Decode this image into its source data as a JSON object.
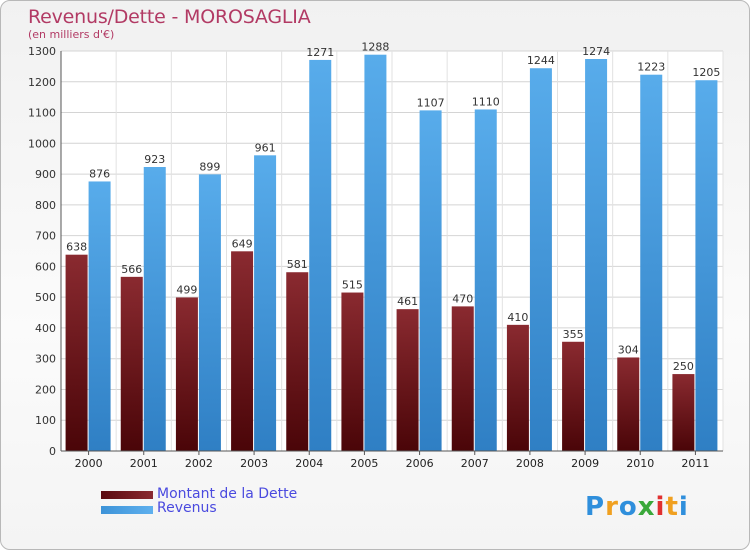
{
  "title": "Revenus/Dette - MOROSAGLIA",
  "subtitle": "(en milliers d'€)",
  "logo": {
    "text": "Proxiti",
    "letters": [
      {
        "ch": "P",
        "color": "#2f8fdc"
      },
      {
        "ch": "r",
        "color": "#f0a020"
      },
      {
        "ch": "o",
        "color": "#2f8fdc"
      },
      {
        "ch": "x",
        "color": "#3aa83a"
      },
      {
        "ch": "i",
        "color": "#e03030"
      },
      {
        "ch": "t",
        "color": "#f0a020"
      },
      {
        "ch": "i",
        "color": "#2f8fdc"
      }
    ]
  },
  "chart_data": {
    "type": "bar",
    "title": "Revenus/Dette - MOROSAGLIA",
    "ylabel": "(en milliers d'€)",
    "ylim": [
      0,
      1300
    ],
    "yticks": [
      0,
      100,
      200,
      300,
      400,
      500,
      600,
      700,
      800,
      900,
      1000,
      1100,
      1200,
      1300
    ],
    "categories": [
      "2000",
      "2001",
      "2002",
      "2003",
      "2004",
      "2005",
      "2006",
      "2007",
      "2008",
      "2009",
      "2010",
      "2011"
    ],
    "grid": true,
    "legend": "bottom-left",
    "series": [
      {
        "name": "Montant de la Dette",
        "color": "#7a1c22",
        "values": [
          638,
          566,
          499,
          649,
          581,
          515,
          461,
          470,
          410,
          355,
          304,
          250
        ]
      },
      {
        "name": "Revenus",
        "color": "#4aa3e6",
        "values": [
          876,
          923,
          899,
          961,
          1271,
          1288,
          1107,
          1110,
          1244,
          1274,
          1223,
          1205
        ]
      }
    ]
  }
}
